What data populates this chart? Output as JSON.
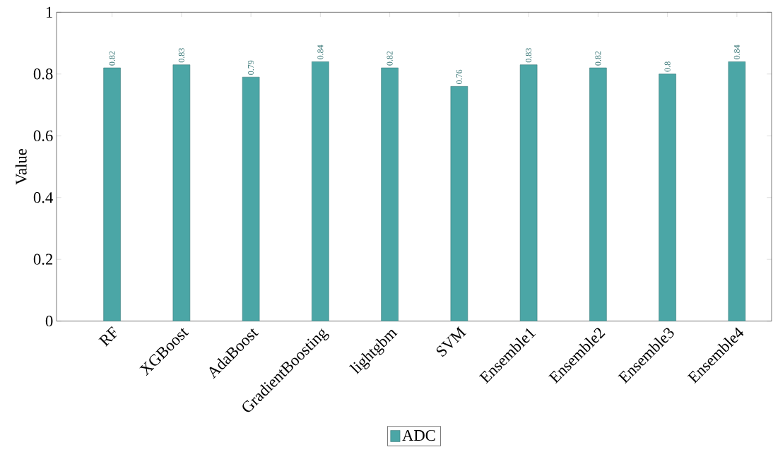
{
  "chart_data": {
    "type": "bar",
    "ylabel": "Value",
    "categories": [
      "RF",
      "XGBoost",
      "AdaBoost",
      "GradientBoosting",
      "lightgbm",
      "SVM",
      "Ensemble1",
      "Ensemble2",
      "Ensemble3",
      "Ensemble4"
    ],
    "series": [
      {
        "name": "ADC",
        "color": "#4ba6a6",
        "values": [
          0.82,
          0.83,
          0.79,
          0.84,
          0.82,
          0.76,
          0.83,
          0.82,
          0.8,
          0.84
        ]
      }
    ],
    "ylim": [
      0,
      1
    ],
    "yticks": [
      0,
      0.2,
      0.4,
      0.6,
      0.8,
      1
    ],
    "data_labels": true,
    "legend": "bottom"
  }
}
